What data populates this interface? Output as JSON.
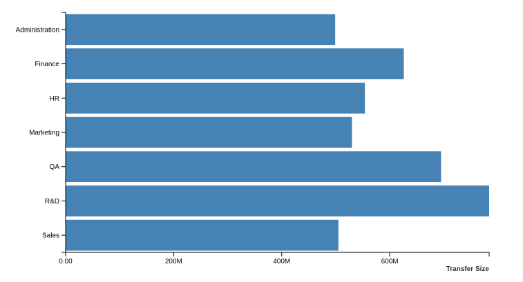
{
  "chart_data": {
    "type": "bar",
    "orientation": "horizontal",
    "categories": [
      "Administration",
      "Finance",
      "HR",
      "Marketing",
      "QA",
      "R&D",
      "Sales"
    ],
    "values": [
      499000000,
      626000000,
      554000000,
      530000000,
      695000000,
      784000000,
      505000000
    ],
    "xlabel": "Transfer Size",
    "ylabel": "",
    "xlim": [
      0,
      784000000
    ],
    "xticks": [
      0,
      200000000,
      400000000,
      600000000
    ],
    "xtick_labels": [
      "0.00",
      "200M",
      "400M",
      "600M"
    ],
    "bar_color": "#4682b4",
    "grid": false
  }
}
